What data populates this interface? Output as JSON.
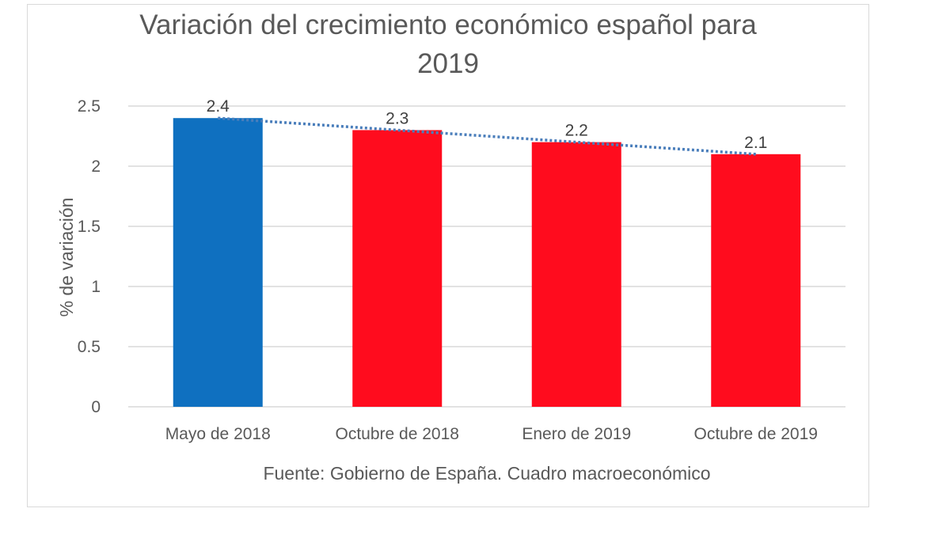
{
  "chart_data": {
    "type": "bar",
    "title_lines": [
      "Variación del crecimiento económico español para",
      "2019"
    ],
    "xlabel": "Fuente: Gobierno de España. Cuadro macroeconómico",
    "ylabel": "% de variación",
    "categories": [
      "Mayo de 2018",
      "Octubre de 2018",
      "Enero de 2019",
      "Octubre de 2019"
    ],
    "values": [
      2.4,
      2.3,
      2.2,
      2.1
    ],
    "data_labels": [
      "2.4",
      "2.3",
      "2.2",
      "2.1"
    ],
    "bar_colors": [
      "#0f70c0",
      "#ff0c1e",
      "#ff0c1e",
      "#ff0c1e"
    ],
    "ylim": [
      0,
      2.5
    ],
    "yticks": [
      0,
      0.5,
      1,
      1.5,
      2,
      2.5
    ],
    "ytick_labels": [
      "0",
      "0.5",
      "1",
      "1.5",
      "2",
      "2.5"
    ],
    "grid": true,
    "trendline": {
      "type": "linear",
      "style": "dotted",
      "color": "#4a7ebb"
    },
    "gridline_color": "#d9d9d9",
    "text_color": "#595959"
  }
}
